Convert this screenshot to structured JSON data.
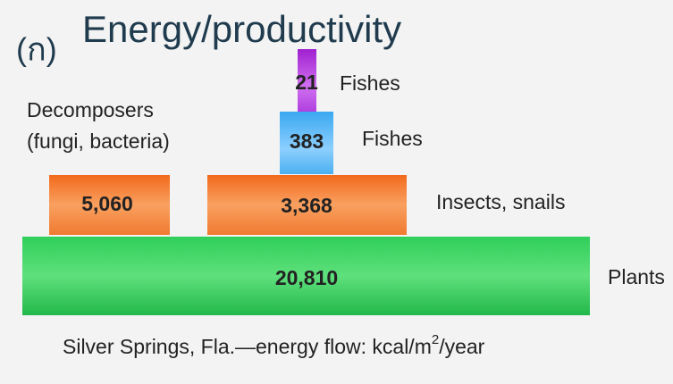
{
  "header": {
    "marker": "(ก)",
    "title": "Energy/productivity"
  },
  "levels": [
    {
      "value": "21",
      "label": "Fishes"
    },
    {
      "value": "383",
      "label": "Fishes"
    },
    {
      "value": "3,368",
      "label": "Insects, snails"
    },
    {
      "value": "20,810",
      "label": "Plants"
    }
  ],
  "decomposers": {
    "value": "5,060",
    "label_lines": [
      "Decomposers",
      "(fungi, bacteria)"
    ]
  },
  "caption": {
    "text": "Silver Springs, Fla.—energy flow: kcal/m",
    "superscript": "2",
    "suffix": "/year"
  }
}
